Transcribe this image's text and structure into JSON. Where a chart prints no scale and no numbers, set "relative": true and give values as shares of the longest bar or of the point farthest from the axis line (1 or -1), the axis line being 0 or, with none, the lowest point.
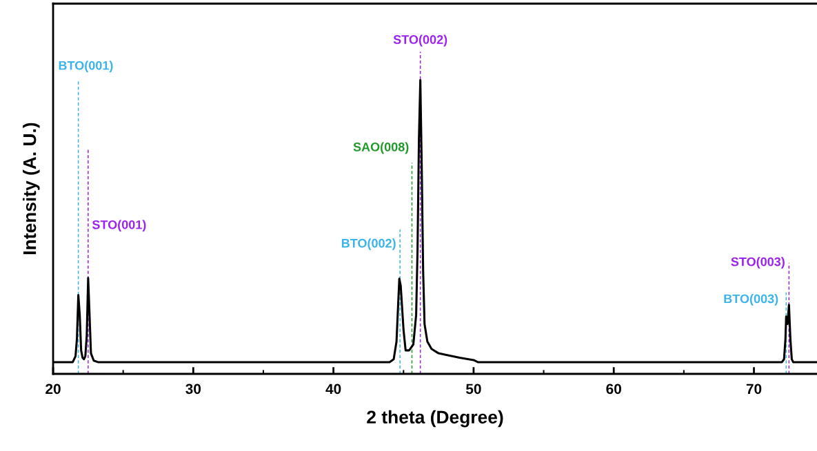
{
  "chart_data": {
    "type": "line",
    "relative": true,
    "xlabel": "2 theta (Degree)",
    "ylabel": "Intensity (A. U.)",
    "xlim": [
      20,
      74.5
    ],
    "xticks": [
      20,
      {
        "value": 25,
        "label": null
      },
      30,
      {
        "value": 35,
        "label": null
      },
      40,
      {
        "value": 45,
        "label": null
      },
      50,
      {
        "value": 55,
        "label": null
      },
      60,
      {
        "value": 65,
        "label": null
      },
      70
    ],
    "tick_labels": "x",
    "grid": false,
    "legend": false,
    "series": [
      {
        "color": "#000000",
        "x": [
          20,
          21.4,
          21.6,
          21.7,
          21.8,
          21.9,
          22.0,
          22.1,
          22.2,
          22.3,
          22.4,
          22.5,
          22.6,
          22.7,
          22.9,
          23.2,
          44.0,
          44.3,
          44.5,
          44.7,
          44.8,
          45.0,
          45.15,
          45.4,
          45.7,
          45.9,
          46.0,
          46.1,
          46.2,
          46.3,
          46.4,
          46.5,
          46.7,
          47.0,
          47.5,
          48.0,
          49.0,
          50.0,
          50.3,
          72.0,
          72.15,
          72.25,
          72.3,
          72.4,
          72.5,
          72.6,
          72.7,
          72.8,
          74.5
        ],
        "values": [
          0.04,
          0.04,
          0.06,
          0.12,
          0.268,
          0.2,
          0.08,
          0.055,
          0.05,
          0.06,
          0.13,
          0.326,
          0.2,
          0.07,
          0.045,
          0.04,
          0.04,
          0.05,
          0.11,
          0.324,
          0.3,
          0.15,
          0.08,
          0.08,
          0.1,
          0.2,
          0.42,
          0.8,
          1.0,
          0.7,
          0.35,
          0.17,
          0.11,
          0.085,
          0.07,
          0.065,
          0.055,
          0.047,
          0.04,
          0.04,
          0.05,
          0.12,
          0.195,
          0.17,
          0.235,
          0.12,
          0.05,
          0.04,
          0.04
        ]
      }
    ],
    "ref_lines": [
      {
        "axis": "x",
        "value": 21.8,
        "label": "BTO(001)",
        "color": "#3bb4ea",
        "line_style": "dashed"
      },
      {
        "axis": "x",
        "value": 22.5,
        "label": "STO(001)",
        "color": "#9b22f0",
        "line_style": "dashed"
      },
      {
        "axis": "x",
        "value": 44.75,
        "label": "BTO(002)",
        "color": "#3bb4ea",
        "line_style": "dashed"
      },
      {
        "axis": "x",
        "value": 45.6,
        "label": "SAO(008)",
        "color": "#22992a",
        "line_style": "dashed"
      },
      {
        "axis": "x",
        "value": 46.2,
        "label": "STO(002)",
        "color": "#9b22f0",
        "line_style": "dashed"
      },
      {
        "axis": "x",
        "value": 72.3,
        "label": "BTO(003)",
        "color": "#3bb4ea",
        "line_style": "dashed"
      },
      {
        "axis": "x",
        "value": 72.5,
        "label": "STO(003)",
        "color": "#9b22f0",
        "line_style": "dashed"
      }
    ]
  }
}
